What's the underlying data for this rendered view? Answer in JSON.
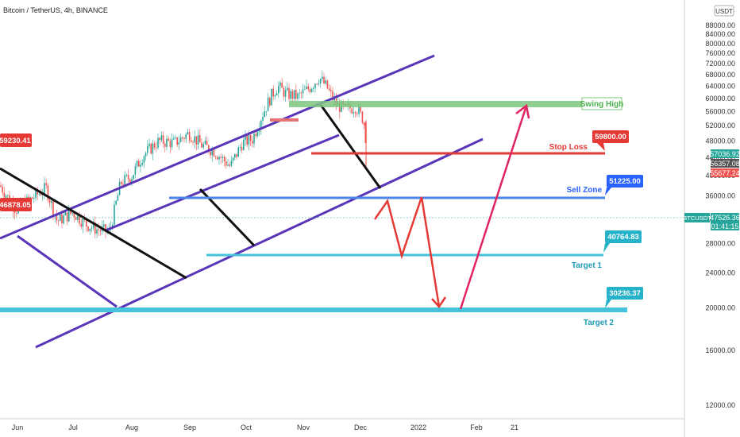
{
  "header": {
    "title": "Bitcoin / TetherUS, 4h, BINANCE",
    "currency_badge": "USDT"
  },
  "colors": {
    "channel": "#5a35b8",
    "trend": "#111111",
    "sell": "#4a86e8",
    "target": "#45c3dc",
    "stop": "#e53935",
    "swing": "#7cc77f",
    "arrow": "#e53935",
    "arrow_up": "#e0245e",
    "up_candle": "#26a69a",
    "down_candle": "#ef5350"
  },
  "chart_data": {
    "type": "candlestick",
    "title": "Bitcoin / TetherUS, 4h, BINANCE",
    "y_scale": "log",
    "ylim": [
      10800,
      94000
    ],
    "price_ticks": [
      88000,
      84000,
      80000,
      76000,
      72000,
      68000,
      64000,
      60000,
      56000,
      52000,
      48000,
      44000,
      40000,
      36000,
      32000,
      28000,
      24000,
      20000,
      16000,
      12000
    ],
    "date_ticks": [
      {
        "label": "Jun",
        "x": 22
      },
      {
        "label": "Jul",
        "x": 92
      },
      {
        "label": "Aug",
        "x": 166
      },
      {
        "label": "Sep",
        "x": 239
      },
      {
        "label": "Oct",
        "x": 310
      },
      {
        "label": "Nov",
        "x": 382
      },
      {
        "label": "Dec",
        "x": 454
      },
      {
        "label": "2022",
        "x": 527
      },
      {
        "label": "Feb",
        "x": 600
      },
      {
        "label": "21",
        "x": 648
      }
    ],
    "price_path": [
      [
        0,
        38000
      ],
      [
        20,
        33500
      ],
      [
        40,
        35500
      ],
      [
        58,
        37500
      ],
      [
        72,
        31500
      ],
      [
        92,
        33000
      ],
      [
        108,
        31000
      ],
      [
        122,
        30200
      ],
      [
        138,
        29800
      ],
      [
        152,
        38500
      ],
      [
        166,
        40000
      ],
      [
        180,
        44500
      ],
      [
        200,
        48000
      ],
      [
        220,
        47500
      ],
      [
        238,
        50000
      ],
      [
        254,
        47000
      ],
      [
        270,
        45500
      ],
      [
        290,
        42000
      ],
      [
        305,
        47500
      ],
      [
        318,
        48500
      ],
      [
        330,
        55000
      ],
      [
        342,
        61000
      ],
      [
        350,
        64000
      ],
      [
        360,
        61500
      ],
      [
        375,
        60500
      ],
      [
        390,
        63500
      ],
      [
        402,
        67000
      ],
      [
        412,
        63500
      ],
      [
        422,
        58500
      ],
      [
        434,
        56500
      ],
      [
        448,
        57500
      ],
      [
        458,
        53500
      ],
      [
        462,
        47500
      ]
    ],
    "annotations": {
      "swing_high": {
        "label": "Swing High",
        "price": 69000
      },
      "stop_loss": {
        "label": "Stop Loss",
        "price": 59800,
        "tag": "59800.00"
      },
      "sell_zone": {
        "label": "Sell Zone",
        "price": 51225,
        "tag": "51225.00"
      },
      "target1": {
        "label": "Target 1",
        "price": 40764.83,
        "tag": "40764.83"
      },
      "target2": {
        "label": "Target 2",
        "price": 30236.37,
        "tag": "30236.37"
      },
      "left_tag_high": {
        "tag": "59230.41",
        "price": 59230.41
      },
      "left_tag_low": {
        "tag": "46878.05",
        "price": 46878.05
      }
    },
    "axis_tags": [
      {
        "value": "57036.92",
        "price": 57036.92,
        "color": "#26a69a"
      },
      {
        "value": "56357.08",
        "price": 56357.08,
        "color": "#555555"
      },
      {
        "value": "55677.24",
        "price": 55677.24,
        "color": "#ef5350"
      }
    ],
    "last_price": {
      "symbol": "BTCUSDT",
      "price": "47526.36",
      "countdown": "01:41:15",
      "value": 47526.36
    }
  }
}
